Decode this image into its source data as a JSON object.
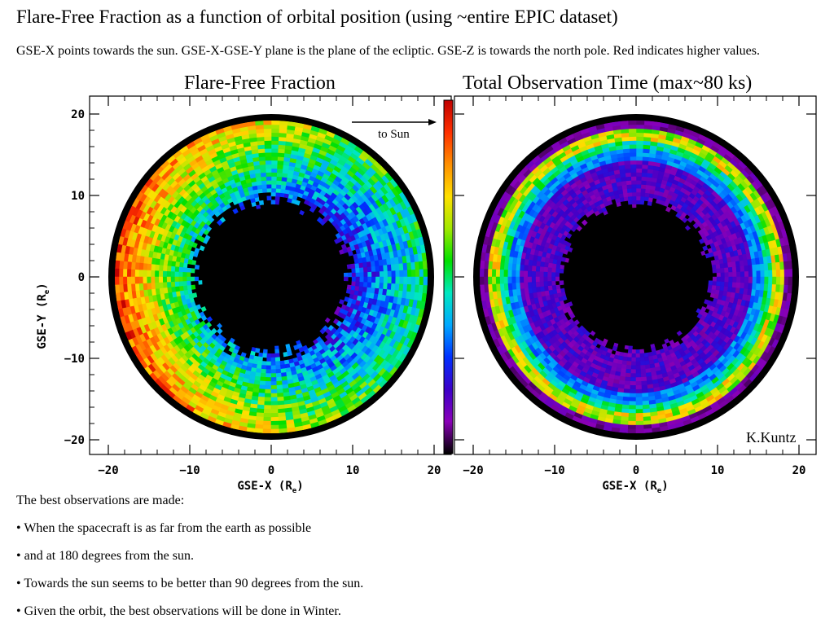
{
  "title": "Flare-Free Fraction as a function of orbital position (using ~entire EPIC dataset)",
  "description": "GSE-X points towards the sun. GSE-X-GSE-Y plane is the plane of the ecliptic. GSE-Z is towards the north pole. Red indicates higher values.",
  "chart_data": [
    {
      "type": "heatmap",
      "title": "Flare-Free Fraction",
      "xlabel": "GSE-X (R",
      "ylabel": "GSE-Y (R",
      "label_subscript": "e",
      "xlim": [
        -22,
        20
      ],
      "ylim": [
        -22,
        22
      ],
      "xticks": [
        "−20",
        "−10",
        "0",
        "10",
        "20"
      ],
      "yticks": [
        "20",
        "10",
        "0",
        "−10",
        "−20"
      ],
      "annotation": "to Sun",
      "colorscale": [
        "#000000",
        "#8a00b8",
        "#3b00c8",
        "#0030ff",
        "#00a8ff",
        "#00e8c0",
        "#00e000",
        "#a0e800",
        "#ffe000",
        "#ff9000",
        "#ff3000",
        "#c00000"
      ]
    },
    {
      "type": "heatmap",
      "title": "Total Observation Time (max~80 ks)",
      "xlabel": "GSE-X (R",
      "ylabel": "",
      "label_subscript": "e",
      "xlim": [
        -22,
        20
      ],
      "ylim": [
        -22,
        22
      ],
      "xticks": [
        "−20",
        "−10",
        "0",
        "10",
        "20"
      ],
      "credit": "K.Kuntz"
    }
  ],
  "notes": [
    "The best observations are made:",
    "• When the spacecraft is as far from the earth as possible",
    "• and at 180 degrees from the sun.",
    "• Towards the sun seems to be better than 90 degrees from the sun.",
    "• Given the orbit, the best observations will be done in Winter."
  ]
}
